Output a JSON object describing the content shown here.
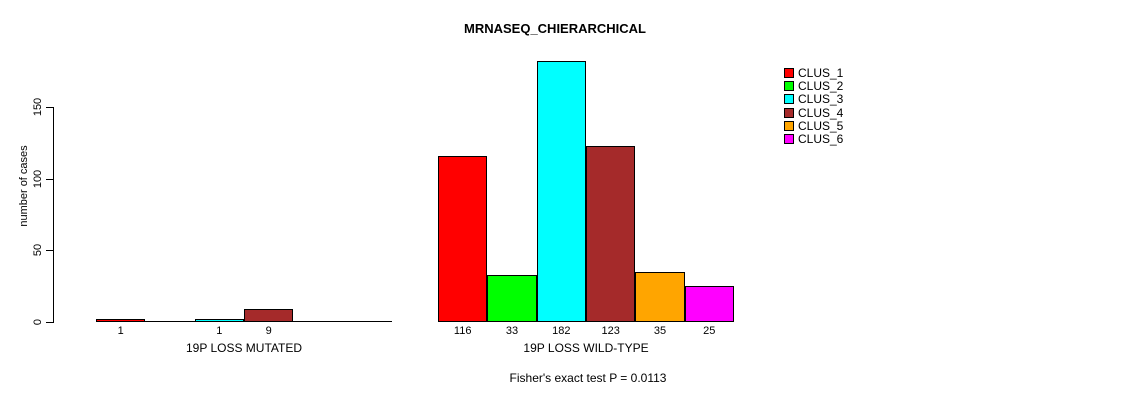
{
  "chart_data": {
    "type": "bar",
    "title": "MRNASEQ_CHIERARCHICAL",
    "xlabel": "",
    "ylabel": "number of cases",
    "ylim": [
      0,
      185
    ],
    "yticks": [
      0,
      50,
      100,
      150
    ],
    "grid": false,
    "legend_position": "right",
    "categories": [
      "19P LOSS MUTATED",
      "19P LOSS WILD-TYPE"
    ],
    "series": [
      {
        "name": "CLUS_1",
        "color": "#ff0000",
        "values": [
          1,
          116
        ]
      },
      {
        "name": "CLUS_2",
        "color": "#00ff00",
        "values": [
          0,
          33
        ]
      },
      {
        "name": "CLUS_3",
        "color": "#00ffff",
        "values": [
          1,
          182
        ]
      },
      {
        "name": "CLUS_4",
        "color": "#a52a2a",
        "values": [
          9,
          123
        ]
      },
      {
        "name": "CLUS_5",
        "color": "#ffa500",
        "values": [
          0,
          35
        ]
      },
      {
        "name": "CLUS_6",
        "color": "#ff00ff",
        "values": [
          0,
          25
        ]
      }
    ],
    "bar_labels": [
      [
        "1",
        "",
        "1",
        "9",
        "",
        ""
      ],
      [
        "116",
        "33",
        "182",
        "123",
        "35",
        "25"
      ]
    ],
    "annotation": "Fisher's exact test P = 0.0113",
    "axis_color": "#000000",
    "background_color": "#ffffff"
  }
}
